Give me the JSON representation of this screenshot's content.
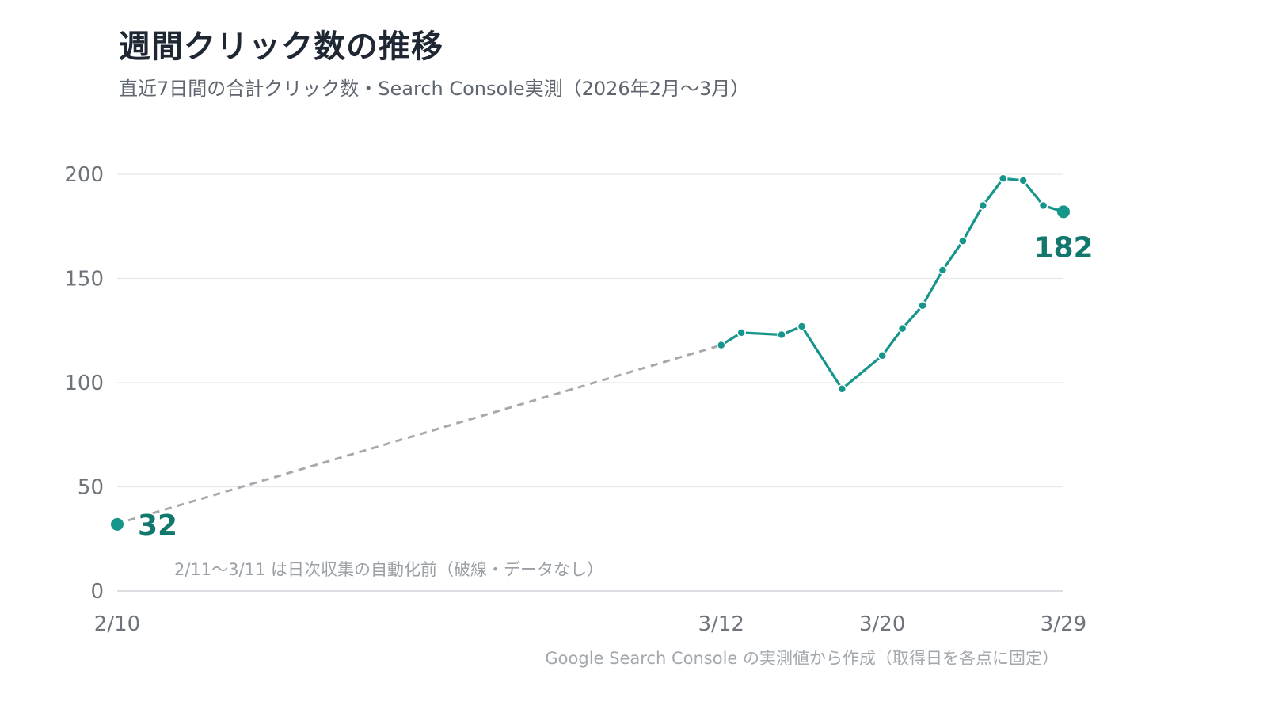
{
  "title": "週間クリック数の推移",
  "subtitle": "直近7日間の合計クリック数・Search Console実測（2026年2月〜3月）",
  "note": "2/11〜3/11 は日次収集の自動化前（破線・データなし）",
  "source": "Google Search Console の実測値から作成（取得日を各点に固定）",
  "colors": {
    "series": "#16958a",
    "label": "#12786e",
    "gap": "#a6a9ad"
  },
  "chart_data": {
    "type": "line",
    "title": "週間クリック数の推移",
    "subtitle": "直近7日間の合計クリック数・Search Console実測（2026年2月〜3月）",
    "xlabel": "",
    "ylabel": "",
    "ylim": [
      0,
      200
    ],
    "yticks": [
      "0",
      "50",
      "100",
      "150",
      "200"
    ],
    "xticks": [
      "2/10",
      "3/12",
      "3/20",
      "3/29"
    ],
    "grid": true,
    "points": [
      {
        "date": "2/10",
        "value": 32
      },
      {
        "date": "3/12",
        "value": 118
      },
      {
        "date": "3/13",
        "value": 124
      },
      {
        "date": "3/15",
        "value": 123
      },
      {
        "date": "3/16",
        "value": 127
      },
      {
        "date": "3/18",
        "value": 97
      },
      {
        "date": "3/20",
        "value": 113
      },
      {
        "date": "3/21",
        "value": 126
      },
      {
        "date": "3/22",
        "value": 137
      },
      {
        "date": "3/23",
        "value": 154
      },
      {
        "date": "3/24",
        "value": 168
      },
      {
        "date": "3/25",
        "value": 185
      },
      {
        "date": "3/26",
        "value": 198
      },
      {
        "date": "3/27",
        "value": 197
      },
      {
        "date": "3/28",
        "value": 185
      },
      {
        "date": "3/29",
        "value": 182
      }
    ],
    "gap": {
      "from": "2/11",
      "to": "3/11"
    },
    "labels": {
      "first": "32",
      "last": "182"
    }
  }
}
